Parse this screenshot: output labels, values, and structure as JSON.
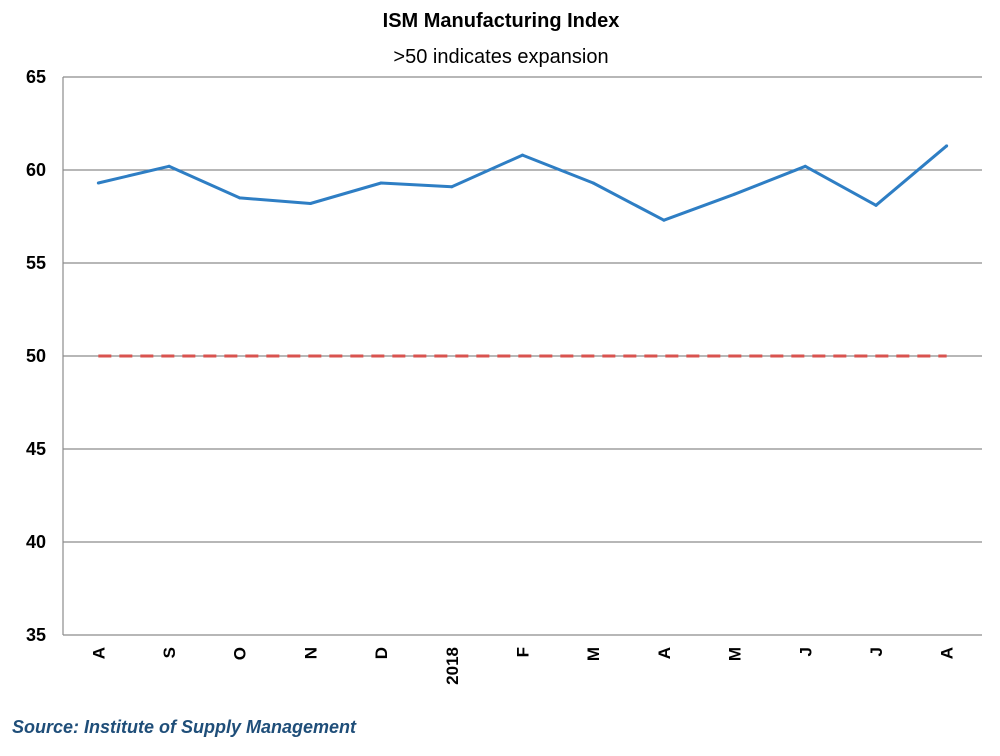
{
  "chart_data": {
    "type": "line",
    "title": "ISM Manufacturing Index",
    "subtitle": ">50 indicates expansion",
    "categories": [
      "A",
      "S",
      "O",
      "N",
      "D",
      "2018",
      "F",
      "M",
      "A",
      "M",
      "J",
      "J",
      "A"
    ],
    "series": [
      {
        "values": [
          59.3,
          60.2,
          58.5,
          58.2,
          59.3,
          59.1,
          60.8,
          59.3,
          57.3,
          58.7,
          60.2,
          58.1,
          61.3
        ],
        "color": "#2E7EC4"
      }
    ],
    "reference_line": {
      "value": 50,
      "color": "#D9534F",
      "style": "dashed"
    },
    "ylim": [
      35,
      65
    ],
    "yticks": [
      35,
      40,
      45,
      50,
      55,
      60,
      65
    ],
    "ytick_labels": [
      "35",
      "40",
      "45",
      "50",
      "55",
      "60",
      "65"
    ],
    "grid": true,
    "xlabel": "",
    "ylabel": ""
  },
  "source": {
    "text": "Source: Institute of Supply Management",
    "color": "#1F4E79"
  }
}
